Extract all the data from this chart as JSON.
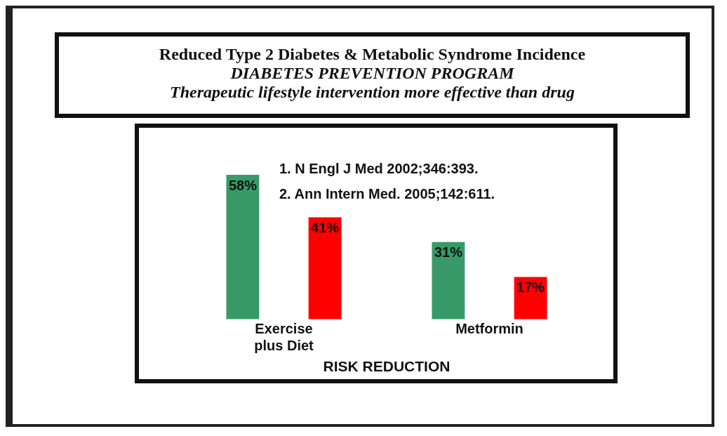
{
  "chart_data": {
    "type": "bar",
    "title": "Reduced Type 2 Diabetes & Metabolic Syndrome Incidence",
    "subtitle": "DIABETES PREVENTION PROGRAM",
    "xlabel": "RISK REDUCTION",
    "categories": [
      "Exercise plus Diet",
      "Metformin"
    ],
    "series": [
      {
        "color": "#389a68",
        "values": [
          58,
          31
        ],
        "value_labels": [
          "58%",
          "31%"
        ]
      },
      {
        "color": "#ff0000",
        "values": [
          41,
          17
        ],
        "value_labels": [
          "41%",
          "17%"
        ]
      }
    ],
    "annotations": [
      "Therapeutic lifestyle intervention more effective than drug",
      "1. N Engl J Med 2002;346:393.",
      "2. Ann Intern Med. 2005;142:611."
    ],
    "grid": false,
    "legend": false
  }
}
